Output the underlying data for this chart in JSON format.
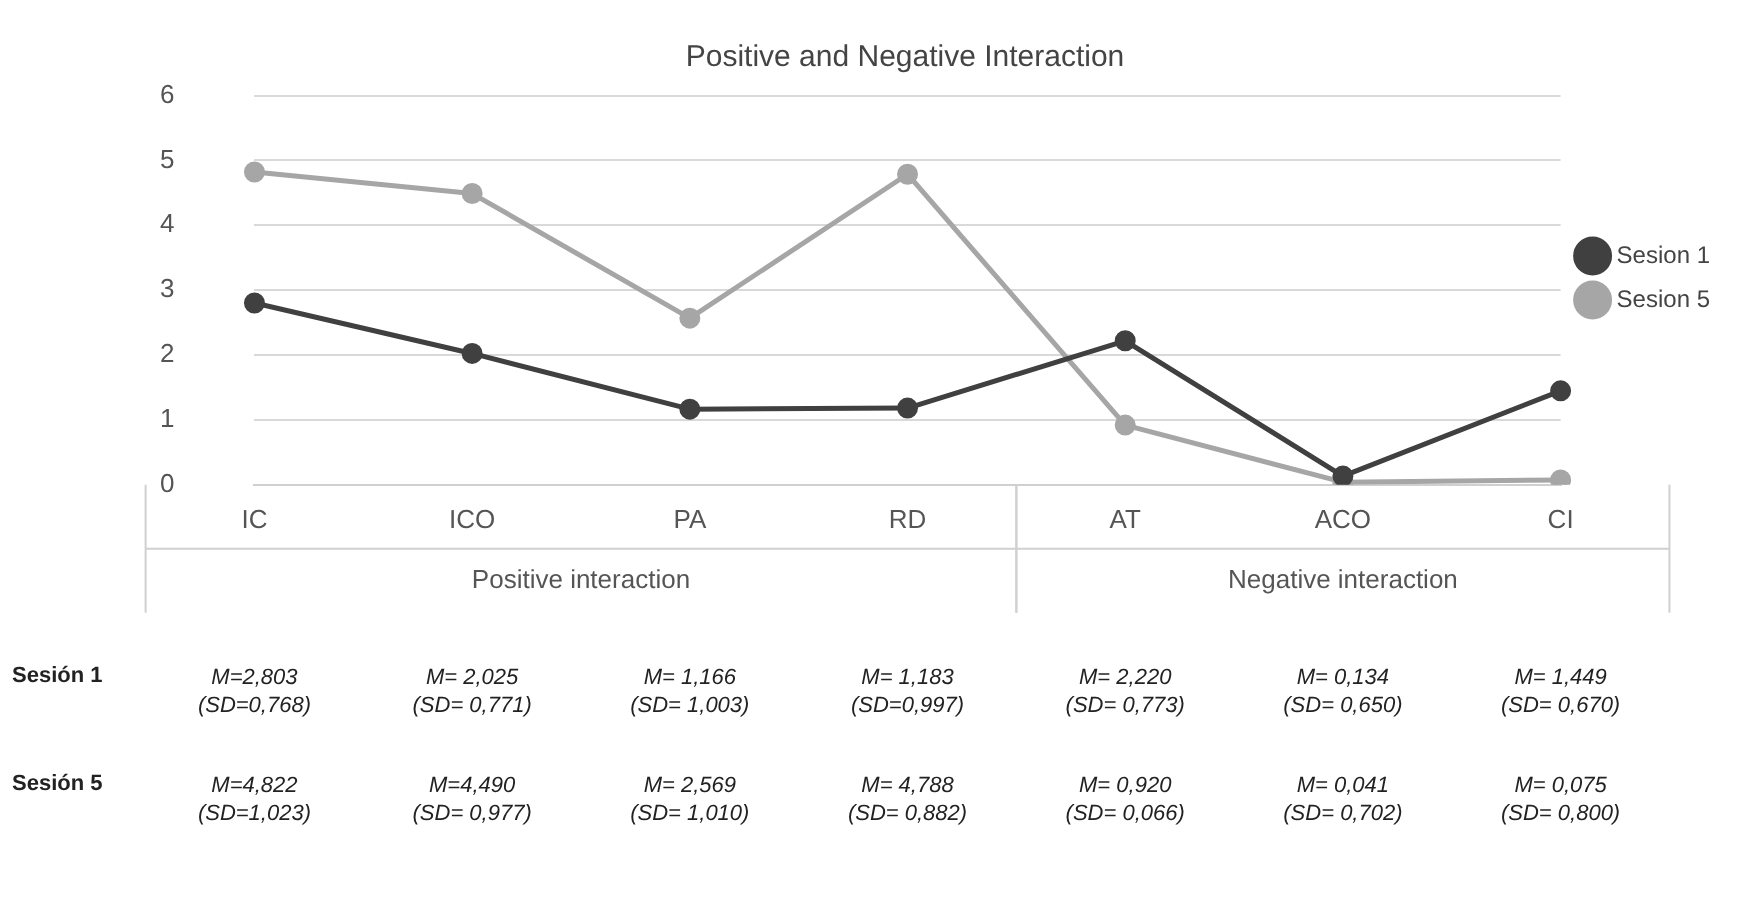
{
  "chart_data": {
    "type": "line",
    "title": "Positive and Negative Interaction",
    "categories": [
      "IC",
      "ICO",
      "PA",
      "RD",
      "AT",
      "ACO",
      "CI"
    ],
    "series": [
      {
        "name": "Sesion 1",
        "color": "#404040",
        "values": [
          2.803,
          2.025,
          1.166,
          1.183,
          2.22,
          0.134,
          1.449
        ],
        "value_labels": [
          "M=2,803 (SD=0,768)",
          "M= 2,025 (SD= 0,771)",
          "M= 1,166 (SD= 1,003)",
          "M= 1,183 (SD=0,997)",
          "M= 2,220 (SD= 0,773)",
          "M= 0,134 (SD= 0,650)",
          "M= 1,449 (SD= 0,670)"
        ]
      },
      {
        "name": "Sesion 5",
        "color": "#a6a6a6",
        "values": [
          4.822,
          4.49,
          2.569,
          4.788,
          0.92,
          0.041,
          0.075
        ],
        "value_labels": [
          "M=4,822 (SD=1,023)",
          "M=4,490 (SD= 0,977)",
          "M= 2,569 (SD= 1,010)",
          "M= 4,788 (SD= 0,882)",
          "M= 0,920 (SD= 0,066)",
          "M= 0,041 (SD= 0,702)",
          "M= 0,075 (SD= 0,800)"
        ]
      }
    ],
    "annotations": [
      "Positive interaction",
      "Negative interaction",
      "Sesión 1",
      "Sesión 5"
    ],
    "ylim": [
      0,
      6
    ],
    "yticks": [
      0,
      1,
      2,
      3,
      4,
      5,
      6
    ],
    "grid": "y",
    "legend": "right",
    "marker": "circle",
    "line_style": "solid"
  }
}
